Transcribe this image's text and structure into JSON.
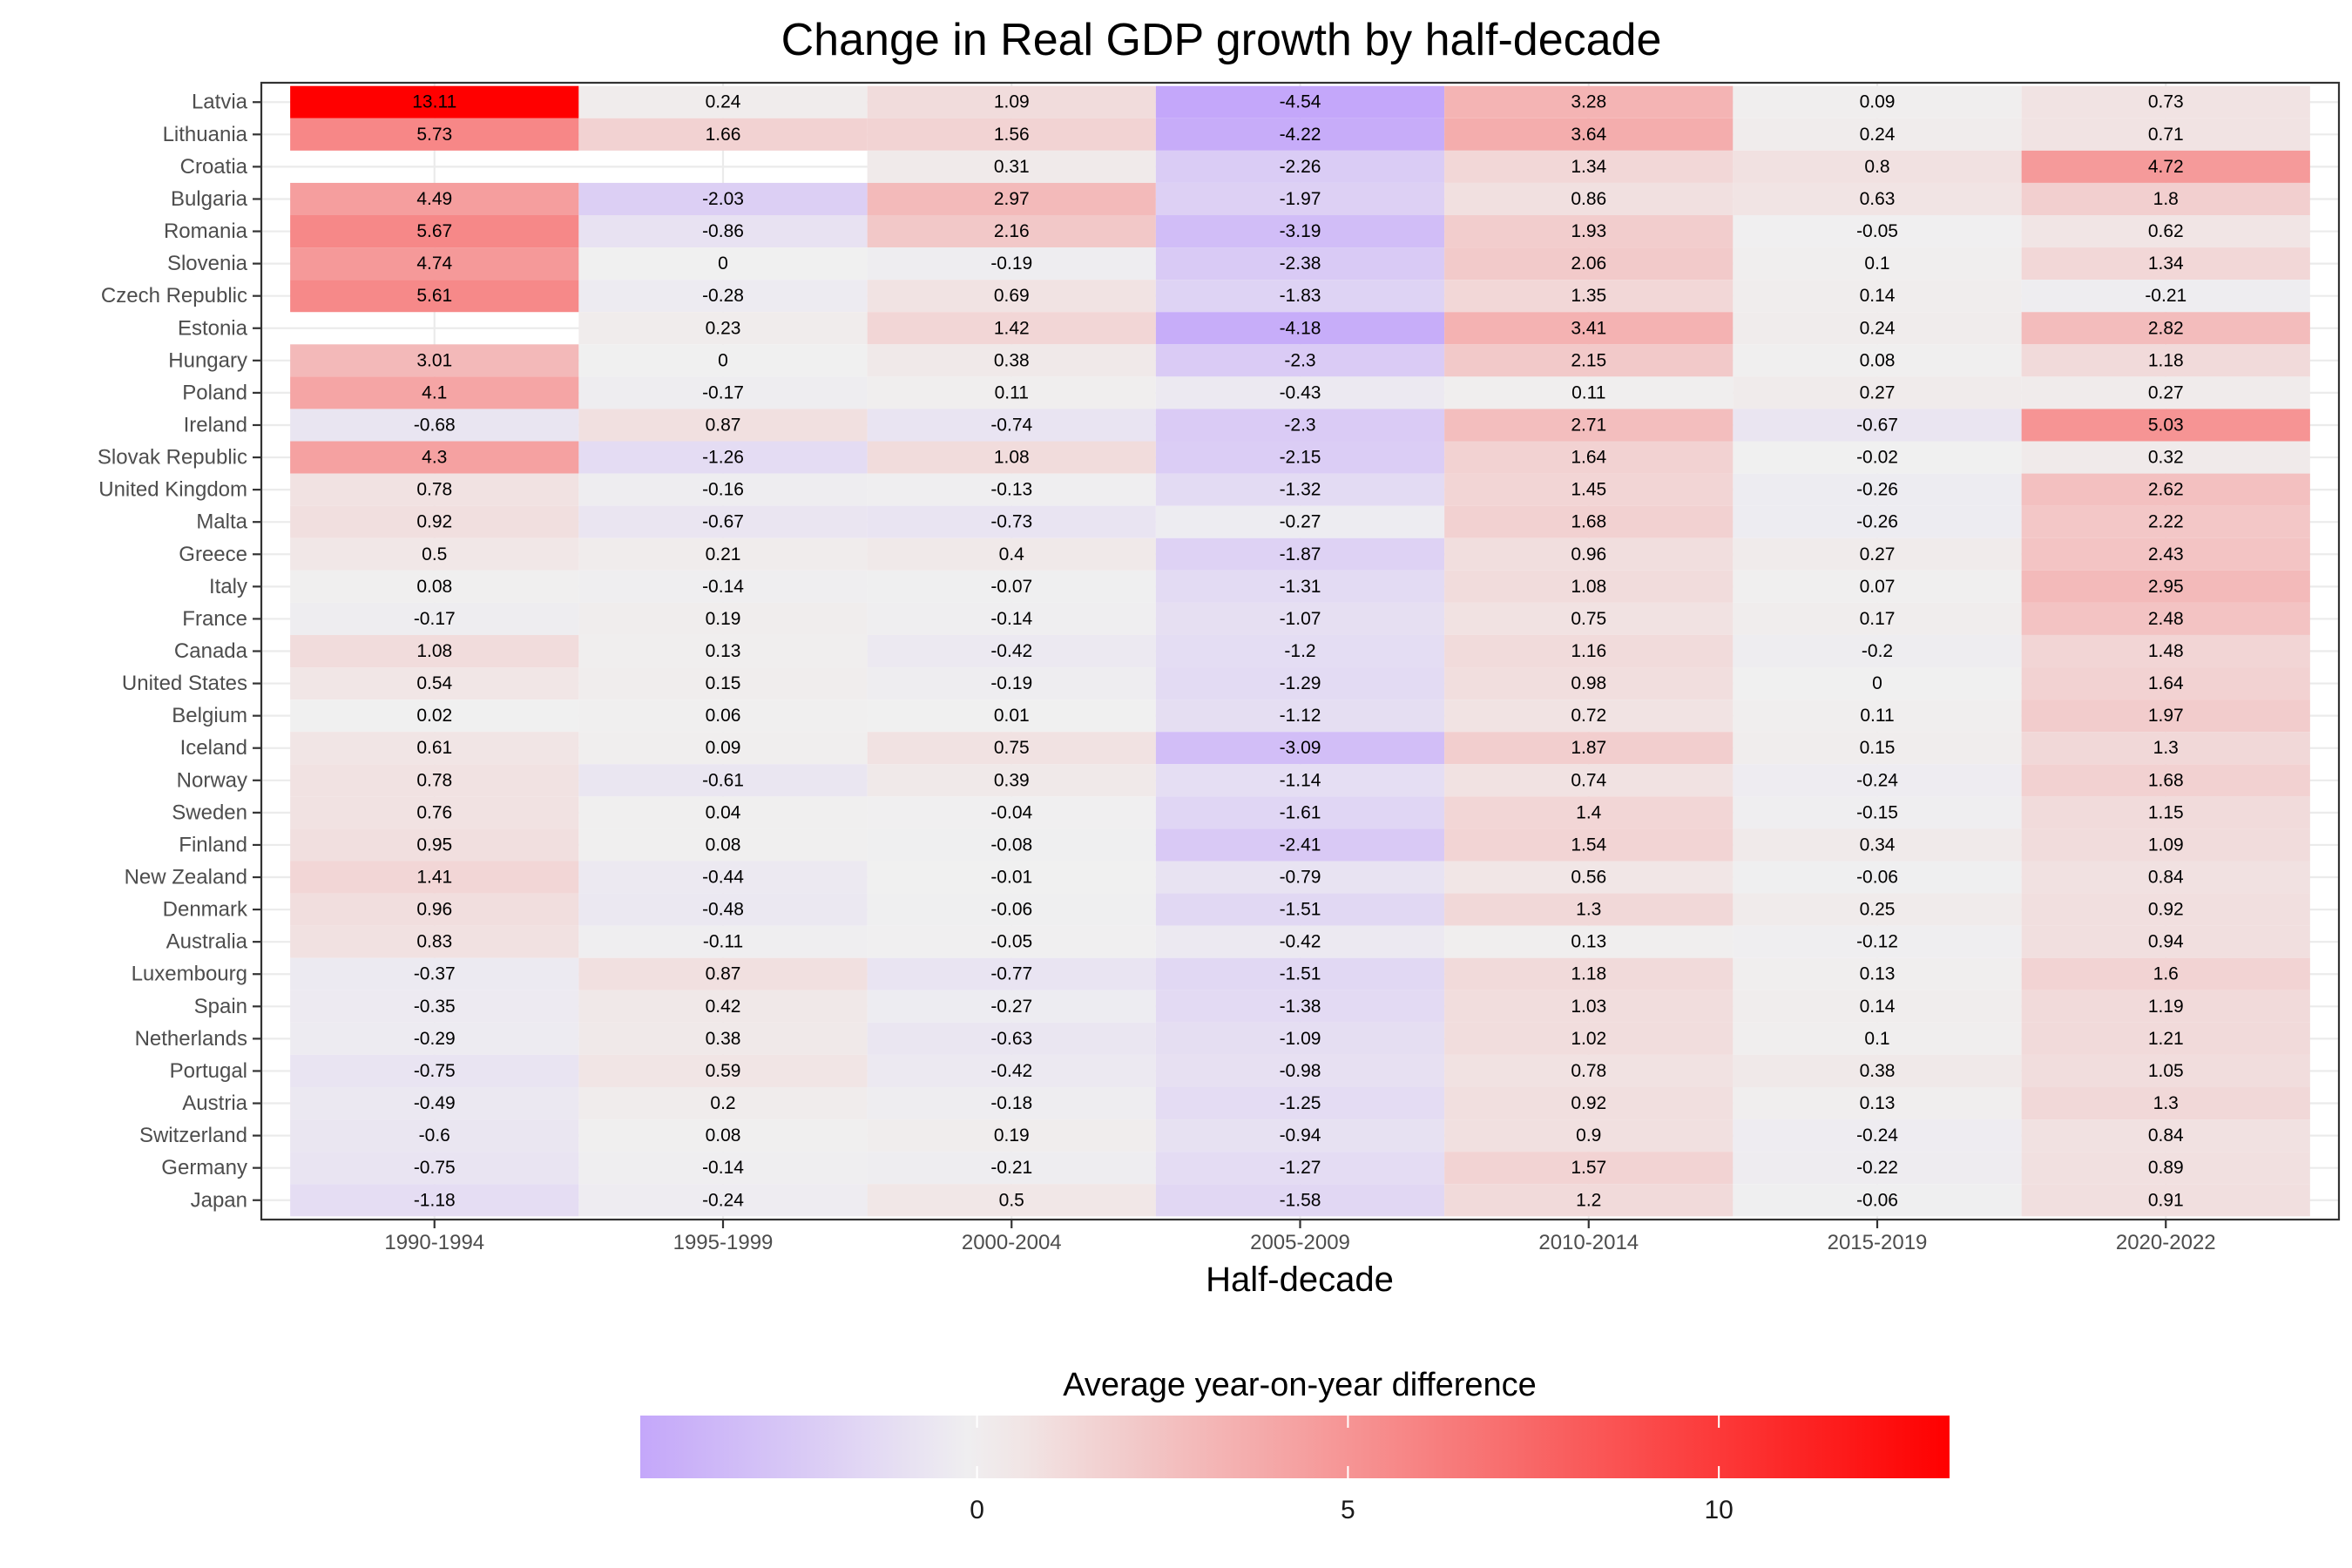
{
  "chart_data": {
    "type": "heatmap",
    "title": "Change in Real GDP growth by half-decade",
    "xlabel": "Half-decade",
    "ylabel": "",
    "x": [
      "1990-1994",
      "1995-1999",
      "2000-2004",
      "2005-2009",
      "2010-2014",
      "2015-2019",
      "2020-2022"
    ],
    "y": [
      "Latvia",
      "Lithuania",
      "Croatia",
      "Bulgaria",
      "Romania",
      "Slovenia",
      "Czech Republic",
      "Estonia",
      "Hungary",
      "Poland",
      "Ireland",
      "Slovak Republic",
      "United Kingdom",
      "Malta",
      "Greece",
      "Italy",
      "France",
      "Canada",
      "United States",
      "Belgium",
      "Iceland",
      "Norway",
      "Sweden",
      "Finland",
      "New Zealand",
      "Denmark",
      "Australia",
      "Luxembourg",
      "Spain",
      "Netherlands",
      "Portugal",
      "Austria",
      "Switzerland",
      "Germany",
      "Japan"
    ],
    "values": [
      [
        13.11,
        0.24,
        1.09,
        -4.54,
        3.28,
        0.09,
        0.73
      ],
      [
        5.73,
        1.66,
        1.56,
        -4.22,
        3.64,
        0.24,
        0.71
      ],
      [
        null,
        null,
        0.31,
        -2.26,
        1.34,
        0.8,
        4.72
      ],
      [
        4.49,
        -2.03,
        2.97,
        -1.97,
        0.86,
        0.63,
        1.8
      ],
      [
        5.67,
        -0.86,
        2.16,
        -3.19,
        1.93,
        -0.05,
        0.62
      ],
      [
        4.74,
        0,
        -0.19,
        -2.38,
        2.06,
        0.1,
        1.34
      ],
      [
        5.61,
        -0.28,
        0.69,
        -1.83,
        1.35,
        0.14,
        -0.21
      ],
      [
        null,
        0.23,
        1.42,
        -4.18,
        3.41,
        0.24,
        2.82
      ],
      [
        3.01,
        0,
        0.38,
        -2.3,
        2.15,
        0.08,
        1.18
      ],
      [
        4.1,
        -0.17,
        0.11,
        -0.43,
        0.11,
        0.27,
        0.27
      ],
      [
        -0.68,
        0.87,
        -0.74,
        -2.3,
        2.71,
        -0.67,
        5.03
      ],
      [
        4.3,
        -1.26,
        1.08,
        -2.15,
        1.64,
        -0.02,
        0.32
      ],
      [
        0.78,
        -0.16,
        -0.13,
        -1.32,
        1.45,
        -0.26,
        2.62
      ],
      [
        0.92,
        -0.67,
        -0.73,
        -0.27,
        1.68,
        -0.26,
        2.22
      ],
      [
        0.5,
        0.21,
        0.4,
        -1.87,
        0.96,
        0.27,
        2.43
      ],
      [
        0.08,
        -0.14,
        -0.07,
        -1.31,
        1.08,
        0.07,
        2.95
      ],
      [
        -0.17,
        0.19,
        -0.14,
        -1.07,
        0.75,
        0.17,
        2.48
      ],
      [
        1.08,
        0.13,
        -0.42,
        -1.2,
        1.16,
        -0.2,
        1.48
      ],
      [
        0.54,
        0.15,
        -0.19,
        -1.29,
        0.98,
        0,
        1.64
      ],
      [
        0.02,
        0.06,
        0.01,
        -1.12,
        0.72,
        0.11,
        1.97
      ],
      [
        0.61,
        0.09,
        0.75,
        -3.09,
        1.87,
        0.15,
        1.3
      ],
      [
        0.78,
        -0.61,
        0.39,
        -1.14,
        0.74,
        -0.24,
        1.68
      ],
      [
        0.76,
        0.04,
        -0.04,
        -1.61,
        1.4,
        -0.15,
        1.15
      ],
      [
        0.95,
        0.08,
        -0.08,
        -2.41,
        1.54,
        0.34,
        1.09
      ],
      [
        1.41,
        -0.44,
        -0.01,
        -0.79,
        0.56,
        -0.06,
        0.84
      ],
      [
        0.96,
        -0.48,
        -0.06,
        -1.51,
        1.3,
        0.25,
        0.92
      ],
      [
        0.83,
        -0.11,
        -0.05,
        -0.42,
        0.13,
        -0.12,
        0.94
      ],
      [
        -0.37,
        0.87,
        -0.77,
        -1.51,
        1.18,
        0.13,
        1.6
      ],
      [
        -0.35,
        0.42,
        -0.27,
        -1.38,
        1.03,
        0.14,
        1.19
      ],
      [
        -0.29,
        0.38,
        -0.63,
        -1.09,
        1.02,
        0.1,
        1.21
      ],
      [
        -0.75,
        0.59,
        -0.42,
        -0.98,
        0.78,
        0.38,
        1.05
      ],
      [
        -0.49,
        0.2,
        -0.18,
        -1.25,
        0.92,
        0.13,
        1.3
      ],
      [
        -0.6,
        0.08,
        0.19,
        -0.94,
        0.9,
        -0.24,
        0.84
      ],
      [
        -0.75,
        -0.14,
        -0.21,
        -1.27,
        1.57,
        -0.22,
        0.89
      ],
      [
        -1.18,
        -0.24,
        0.5,
        -1.58,
        1.2,
        -0.06,
        0.91
      ]
    ],
    "color_scale": {
      "title": "Average year-on-year difference",
      "min": -4.54,
      "mid": 0,
      "max": 13.11,
      "low_color": "#c4a7fa",
      "mid_color": "#f0f0f0",
      "high_color": "#ff0000",
      "ticks": [
        0,
        5,
        10
      ],
      "tick_labels": [
        "0",
        "5",
        "10"
      ]
    },
    "grid": true,
    "legend_position": "bottom"
  }
}
